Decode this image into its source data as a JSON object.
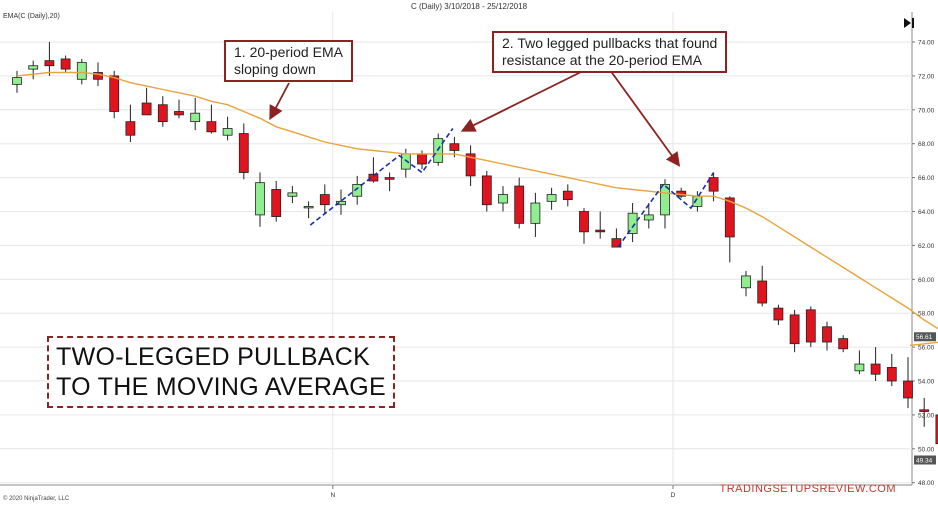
{
  "header": {
    "title": "C (Daily)  3/10/2018 - 25/12/2018"
  },
  "indicator_label": "EMA(C (Daily),20)",
  "copyright": "© 2020 NinjaTrader, LLC",
  "brand": "TRADINGSETUPSREVIEW.COM",
  "annotations": {
    "note1": {
      "line1": "1. 20-period EMA",
      "line2": "sloping down"
    },
    "note2": {
      "line1": "2. Two legged pullbacks that found",
      "line2": "resistance at the 20-period EMA"
    },
    "headline": {
      "line1": "TWO-LEGGED PULLBACK",
      "line2": "TO THE MOVING AVERAGE"
    }
  },
  "colors": {
    "up": "#90ee90",
    "down": "#e0141e",
    "ema": "#e8a33d",
    "pattern": "#1a2fa8",
    "accent": "#8b2323"
  },
  "icons": {
    "play": "play-end-icon"
  },
  "chart_data": {
    "type": "candlestick",
    "title": "C (Daily)  3/10/2018 - 25/12/2018",
    "ylim": [
      48,
      75
    ],
    "y_ticks": [
      "74.00",
      "72.00",
      "70.00",
      "68.00",
      "66.00",
      "64.00",
      "62.00",
      "60.00",
      "58.00",
      "56.00",
      "54.00",
      "52.00",
      "50.00",
      "48.00"
    ],
    "x_ticks": [
      "N",
      "D"
    ],
    "x_tick_index": [
      19,
      40
    ],
    "price_tags": [
      "56.61",
      "49.34"
    ],
    "grid": true,
    "candles": [
      {
        "o": 71.5,
        "h": 72.3,
        "l": 71.0,
        "c": 71.9
      },
      {
        "o": 72.4,
        "h": 72.9,
        "l": 71.8,
        "c": 72.6
      },
      {
        "o": 72.9,
        "h": 74.0,
        "l": 72.0,
        "c": 72.6
      },
      {
        "o": 73.0,
        "h": 73.2,
        "l": 72.2,
        "c": 72.4
      },
      {
        "o": 71.8,
        "h": 73.0,
        "l": 71.5,
        "c": 72.8
      },
      {
        "o": 72.2,
        "h": 72.8,
        "l": 71.4,
        "c": 71.8
      },
      {
        "o": 72.0,
        "h": 72.3,
        "l": 69.5,
        "c": 69.9
      },
      {
        "o": 69.3,
        "h": 70.3,
        "l": 68.1,
        "c": 68.5
      },
      {
        "o": 70.4,
        "h": 71.3,
        "l": 69.7,
        "c": 69.7
      },
      {
        "o": 70.3,
        "h": 70.8,
        "l": 69.0,
        "c": 69.3
      },
      {
        "o": 69.9,
        "h": 70.6,
        "l": 69.5,
        "c": 69.7
      },
      {
        "o": 69.3,
        "h": 70.7,
        "l": 68.8,
        "c": 69.8
      },
      {
        "o": 69.3,
        "h": 70.3,
        "l": 68.6,
        "c": 68.7
      },
      {
        "o": 68.5,
        "h": 69.6,
        "l": 68.2,
        "c": 68.9
      },
      {
        "o": 68.6,
        "h": 69.2,
        "l": 65.9,
        "c": 66.3
      },
      {
        "o": 63.8,
        "h": 66.3,
        "l": 63.1,
        "c": 65.7
      },
      {
        "o": 65.3,
        "h": 65.8,
        "l": 63.4,
        "c": 63.7
      },
      {
        "o": 64.9,
        "h": 65.5,
        "l": 64.5,
        "c": 65.1
      },
      {
        "o": 64.3,
        "h": 64.6,
        "l": 63.6,
        "c": 64.3
      },
      {
        "o": 65.0,
        "h": 65.6,
        "l": 63.9,
        "c": 64.4
      },
      {
        "o": 64.4,
        "h": 65.3,
        "l": 63.8,
        "c": 64.6
      },
      {
        "o": 64.9,
        "h": 66.1,
        "l": 64.4,
        "c": 65.6
      },
      {
        "o": 66.2,
        "h": 67.2,
        "l": 65.7,
        "c": 65.8
      },
      {
        "o": 66.0,
        "h": 66.3,
        "l": 65.2,
        "c": 65.9
      },
      {
        "o": 66.5,
        "h": 67.7,
        "l": 66.0,
        "c": 67.4
      },
      {
        "o": 67.4,
        "h": 67.6,
        "l": 66.5,
        "c": 66.8
      },
      {
        "o": 66.9,
        "h": 68.6,
        "l": 66.7,
        "c": 68.3
      },
      {
        "o": 68.0,
        "h": 68.4,
        "l": 67.2,
        "c": 67.6
      },
      {
        "o": 67.4,
        "h": 67.9,
        "l": 65.5,
        "c": 66.1
      },
      {
        "o": 66.1,
        "h": 66.4,
        "l": 64.0,
        "c": 64.4
      },
      {
        "o": 64.5,
        "h": 65.5,
        "l": 64.0,
        "c": 65.0
      },
      {
        "o": 65.5,
        "h": 66.0,
        "l": 63.0,
        "c": 63.3
      },
      {
        "o": 63.3,
        "h": 65.1,
        "l": 62.5,
        "c": 64.5
      },
      {
        "o": 64.6,
        "h": 65.4,
        "l": 64.1,
        "c": 65.0
      },
      {
        "o": 65.2,
        "h": 65.6,
        "l": 64.3,
        "c": 64.7
      },
      {
        "o": 64.0,
        "h": 64.2,
        "l": 62.1,
        "c": 62.8
      },
      {
        "o": 62.9,
        "h": 64.0,
        "l": 62.4,
        "c": 62.8
      },
      {
        "o": 62.4,
        "h": 63.0,
        "l": 61.9,
        "c": 61.9
      },
      {
        "o": 62.7,
        "h": 64.5,
        "l": 62.2,
        "c": 63.9
      },
      {
        "o": 63.5,
        "h": 64.5,
        "l": 63.0,
        "c": 63.8
      },
      {
        "o": 63.8,
        "h": 65.9,
        "l": 63.0,
        "c": 65.6
      },
      {
        "o": 65.2,
        "h": 65.4,
        "l": 64.8,
        "c": 64.9
      },
      {
        "o": 64.3,
        "h": 65.2,
        "l": 64.0,
        "c": 64.9
      },
      {
        "o": 66.0,
        "h": 66.3,
        "l": 64.6,
        "c": 65.2
      },
      {
        "o": 64.8,
        "h": 64.9,
        "l": 61.0,
        "c": 62.5
      },
      {
        "o": 59.5,
        "h": 60.5,
        "l": 59.0,
        "c": 60.2
      },
      {
        "o": 59.9,
        "h": 60.8,
        "l": 58.4,
        "c": 58.6
      },
      {
        "o": 58.3,
        "h": 58.5,
        "l": 57.3,
        "c": 57.6
      },
      {
        "o": 57.9,
        "h": 58.2,
        "l": 55.7,
        "c": 56.2
      },
      {
        "o": 58.2,
        "h": 58.4,
        "l": 56.0,
        "c": 56.3
      },
      {
        "o": 57.2,
        "h": 57.5,
        "l": 55.8,
        "c": 56.3
      },
      {
        "o": 56.5,
        "h": 56.7,
        "l": 55.7,
        "c": 55.9
      },
      {
        "o": 54.6,
        "h": 55.8,
        "l": 54.4,
        "c": 55.0
      },
      {
        "o": 55.0,
        "h": 56.0,
        "l": 54.0,
        "c": 54.4
      },
      {
        "o": 54.8,
        "h": 55.6,
        "l": 53.7,
        "c": 54.0
      },
      {
        "o": 54.0,
        "h": 55.4,
        "l": 52.4,
        "c": 53.0
      },
      {
        "o": 52.3,
        "h": 53.0,
        "l": 51.3,
        "c": 52.2
      },
      {
        "o": 52.0,
        "h": 52.5,
        "l": 50.0,
        "c": 50.3
      },
      {
        "o": 49.4,
        "h": 50.2,
        "l": 48.6,
        "c": 49.3
      }
    ],
    "ema": [
      72.0,
      72.1,
      72.2,
      72.2,
      72.2,
      72.1,
      71.9,
      71.6,
      71.4,
      71.2,
      71.0,
      70.8,
      70.5,
      70.3,
      69.9,
      69.5,
      69.0,
      68.7,
      68.4,
      68.1,
      67.9,
      67.7,
      67.6,
      67.5,
      67.4,
      67.4,
      67.4,
      67.4,
      67.2,
      67.0,
      66.8,
      66.6,
      66.4,
      66.2,
      66.0,
      65.8,
      65.6,
      65.4,
      65.3,
      65.2,
      65.1,
      65.0,
      64.9,
      64.9,
      64.6,
      64.2,
      63.7,
      63.1,
      62.5,
      61.9,
      61.3,
      60.7,
      60.1,
      59.5,
      58.9,
      58.3,
      57.6,
      57.0,
      56.4
    ],
    "pattern_legs": [
      [
        [
          18.1,
          63.2
        ],
        [
          23.6,
          67.3
        ],
        [
          25,
          66.3
        ],
        [
          26.9,
          68.9
        ]
      ],
      [
        [
          37.1,
          61.9
        ],
        [
          39.9,
          65.6
        ],
        [
          41.6,
          64.2
        ],
        [
          43.0,
          66.3
        ]
      ]
    ]
  }
}
